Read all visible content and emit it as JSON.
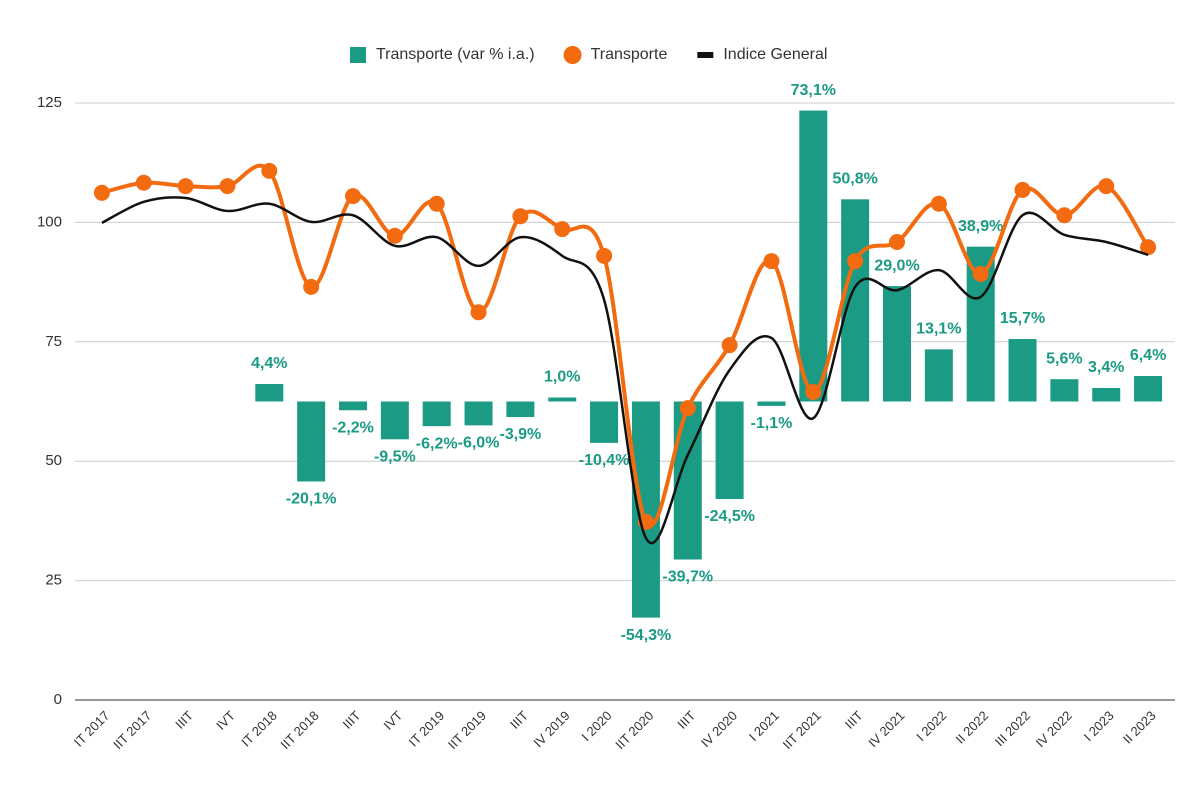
{
  "chart_data": {
    "type": "bar",
    "categories": [
      "IT 2017",
      "IIT 2017",
      "IIIT",
      "IVT",
      "IT 2018",
      "IIT 2018",
      "IIIT",
      "IVT",
      "IT 2019",
      "IIT 2019",
      "IIIT",
      "IV 2019",
      "I 2020",
      "IIT 2020",
      "IIIT",
      "IV 2020",
      "I 2021",
      "IIT 2021",
      "IIIT",
      "IV 2021",
      "I 2022",
      "II 2022",
      "III 2022",
      "IV 2022",
      "I 2023",
      "II 2023"
    ],
    "series": [
      {
        "name": "Transporte (var % i.a.)",
        "type": "bar",
        "axis": "y2",
        "color": "#1b9a84",
        "values": [
          null,
          null,
          null,
          null,
          4.4,
          -20.1,
          -2.2,
          -9.5,
          -6.2,
          -6.0,
          -3.9,
          1.0,
          -10.4,
          -54.3,
          -39.7,
          -24.5,
          -1.1,
          73.1,
          50.8,
          29.0,
          13.1,
          38.9,
          15.7,
          5.6,
          3.4,
          6.4
        ],
        "value_labels": [
          null,
          null,
          null,
          null,
          "4,4%",
          "-20,1%",
          "-2,2%",
          "-9,5%",
          "-6,2%",
          "-6,0%",
          "-3,9%",
          "1,0%",
          "-10,4%",
          "-54,3%",
          "-39,7%",
          "-24,5%",
          "-1,1%",
          "73,1%",
          "50,8%",
          "29,0%",
          "13,1%",
          "38,9%",
          "15,7%",
          "5,6%",
          "3,4%",
          "6,4%"
        ]
      },
      {
        "name": "Transporte",
        "type": "line",
        "markers": true,
        "color": "#f26b10",
        "values": [
          106.2,
          108.3,
          107.6,
          107.6,
          110.8,
          86.5,
          105.5,
          97.2,
          103.9,
          81.2,
          101.3,
          98.6,
          93.0,
          37.3,
          61.1,
          74.3,
          91.9,
          64.5,
          91.9,
          95.9,
          103.9,
          89.2,
          106.8,
          101.5,
          107.6,
          94.8
        ]
      },
      {
        "name": "Indice General",
        "type": "line",
        "markers": false,
        "color": "#111111",
        "values": [
          99.9,
          104.3,
          105.1,
          102.4,
          103.9,
          100.1,
          101.5,
          95.1,
          96.9,
          90.9,
          96.9,
          93.0,
          83.8,
          33.9,
          51.3,
          69.1,
          75.8,
          59.0,
          86.5,
          85.8,
          90.0,
          84.4,
          101.5,
          97.4,
          95.9,
          93.2
        ]
      }
    ],
    "ylim": [
      0,
      125
    ],
    "yticks": [
      0,
      25,
      50,
      75,
      100,
      125
    ],
    "y2lim": [
      -75,
      75
    ],
    "grid": true,
    "legend": "top"
  }
}
